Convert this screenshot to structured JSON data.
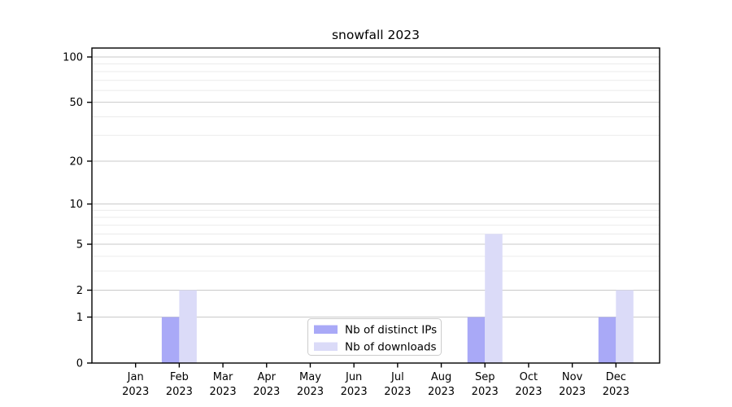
{
  "chart_data": {
    "type": "bar",
    "title": "snowfall 2023",
    "categories": [
      "Jan",
      "Feb",
      "Mar",
      "Apr",
      "May",
      "Jun",
      "Jul",
      "Aug",
      "Sep",
      "Oct",
      "Nov",
      "Dec"
    ],
    "year_label": "2023",
    "series": [
      {
        "name": "Nb of distinct IPs",
        "color": "#a9a9f7",
        "values": [
          0,
          1,
          0,
          0,
          0,
          0,
          0,
          0,
          1,
          0,
          0,
          1
        ]
      },
      {
        "name": "Nb of downloads",
        "color": "#dbdbf8",
        "values": [
          0,
          2,
          0,
          0,
          0,
          0,
          0,
          0,
          6,
          0,
          0,
          2
        ]
      }
    ],
    "y_scale": "log1p",
    "ylim": [
      0,
      115
    ],
    "y_ticks": [
      0,
      1,
      2,
      5,
      10,
      20,
      50,
      100
    ],
    "y_minor_ticks": [
      3,
      4,
      6,
      7,
      8,
      9,
      30,
      40,
      60,
      70,
      80,
      90
    ],
    "grid": "horizontal",
    "legend_position": "inside-bottom-center",
    "colors": {
      "background": "#ffffff",
      "axis": "#000000",
      "grid_major": "#c9c9c9",
      "grid_minor": "#ebebeb",
      "legend_border": "#cccccc",
      "legend_fill": "#ffffff",
      "text": "#000000"
    }
  }
}
